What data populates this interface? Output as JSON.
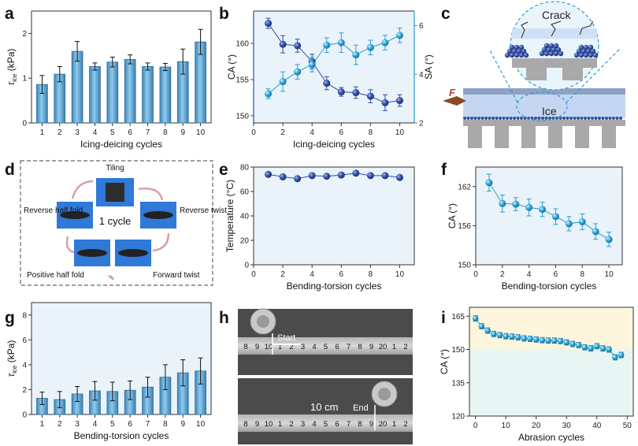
{
  "panel_labels": [
    "a",
    "b",
    "c",
    "d",
    "e",
    "f",
    "g",
    "h",
    "i"
  ],
  "colors": {
    "bar": "#6fb2dc",
    "bar_dark": "#2f6f9a",
    "blue_dark": "#2f4fa0",
    "blue_light": "#27a0d0",
    "panel_bg": "#eaf2fa",
    "panel_bg_i_top": "#fdf6dd",
    "panel_bg_i_bottom": "#e7f5f3"
  },
  "chart_data": [
    {
      "panel": "a",
      "type": "bar",
      "x": [
        1,
        2,
        3,
        4,
        5,
        6,
        7,
        8,
        9,
        10
      ],
      "values": [
        0.86,
        1.09,
        1.6,
        1.26,
        1.36,
        1.42,
        1.26,
        1.25,
        1.37,
        1.81
      ],
      "errors": [
        0.2,
        0.17,
        0.22,
        0.08,
        0.11,
        0.1,
        0.08,
        0.08,
        0.28,
        0.28
      ],
      "xlabel": "Icing-deicing cycles",
      "ylabel": "τ",
      "ylabel_sub": "ice",
      "ylabel_unit": "(kPa)",
      "ylim": [
        0,
        2.5
      ],
      "yticks": [
        0,
        1,
        2
      ],
      "xticks": [
        1,
        2,
        3,
        4,
        5,
        6,
        7,
        8,
        9,
        10
      ]
    },
    {
      "panel": "b",
      "type": "scatter",
      "x": [
        1,
        2,
        3,
        4,
        5,
        6,
        7,
        8,
        9,
        10
      ],
      "series": [
        {
          "name": "CA",
          "axis": "left",
          "values": [
            162.8,
            159.9,
            159.7,
            157.5,
            154.5,
            153.3,
            153.2,
            152.7,
            151.8,
            152.1
          ],
          "errors": [
            0.7,
            1.2,
            0.9,
            1.0,
            0.9,
            0.6,
            0.8,
            0.9,
            1.1,
            0.8
          ]
        },
        {
          "name": "SA",
          "axis": "right",
          "values": [
            3.2,
            3.7,
            4.1,
            4.4,
            5.2,
            5.3,
            4.8,
            5.1,
            5.3,
            5.6
          ],
          "errors": [
            0.2,
            0.4,
            0.3,
            0.3,
            0.3,
            0.4,
            0.4,
            0.3,
            0.3,
            0.3
          ]
        }
      ],
      "xlabel": "Icing-deicing cycles",
      "ylabel_left": "CA (°)",
      "ylabel_right": "SA (°)",
      "xlim": [
        0,
        11
      ],
      "ylim_left": [
        149,
        164.5
      ],
      "ylim_right": [
        2,
        6.6
      ],
      "yticks_left": [
        150,
        155,
        160
      ],
      "yticks_right": [
        2,
        4,
        6
      ],
      "xticks": [
        0,
        2,
        4,
        6,
        8,
        10
      ]
    },
    {
      "panel": "e",
      "type": "line",
      "x": [
        1,
        2,
        3,
        4,
        5,
        6,
        7,
        8,
        9,
        10
      ],
      "values": [
        74,
        72,
        70.5,
        73,
        72.5,
        73.5,
        75,
        73,
        73,
        71.5
      ],
      "xlabel": "Bending-torsion cycles",
      "ylabel": "Temperature (°C)",
      "xlim": [
        0,
        11
      ],
      "ylim": [
        0,
        80
      ],
      "yticks": [
        0,
        20,
        40,
        60,
        80
      ],
      "xticks": [
        0,
        2,
        4,
        6,
        8,
        10
      ]
    },
    {
      "panel": "f",
      "type": "scatter",
      "x": [
        1,
        2,
        3,
        4,
        5,
        6,
        7,
        8,
        9,
        10
      ],
      "values": [
        162.6,
        159.4,
        159.3,
        158.8,
        158.5,
        157.4,
        156.3,
        156.6,
        155.1,
        153.9
      ],
      "errors": [
        1.3,
        1.3,
        1.0,
        1.3,
        1.1,
        1.2,
        1.1,
        1.2,
        1.2,
        1.1
      ],
      "xlabel": "Bending-torsion cycles",
      "ylabel": "CA (°)",
      "xlim": [
        0,
        11
      ],
      "ylim": [
        150,
        165
      ],
      "yticks": [
        150,
        156,
        162
      ],
      "xticks": [
        0,
        2,
        4,
        6,
        8,
        10
      ]
    },
    {
      "panel": "g",
      "type": "bar",
      "x": [
        1,
        2,
        3,
        4,
        5,
        6,
        7,
        8,
        9,
        10
      ],
      "values": [
        1.3,
        1.2,
        1.65,
        1.9,
        1.85,
        1.95,
        2.2,
        3.0,
        3.35,
        3.5
      ],
      "errors": [
        0.5,
        0.65,
        0.6,
        0.75,
        0.75,
        0.75,
        0.8,
        1.0,
        1.05,
        1.05
      ],
      "xlabel": "Bending-torsion cycles",
      "ylabel": "τ",
      "ylabel_sub": "ice",
      "ylabel_unit": "(kPa)",
      "ylim": [
        0,
        9
      ],
      "yticks": [
        0,
        2,
        4,
        6,
        8
      ],
      "xticks": [
        1,
        2,
        3,
        4,
        5,
        6,
        7,
        8,
        9,
        10
      ]
    },
    {
      "panel": "i",
      "type": "scatter",
      "x": [
        0,
        2,
        4,
        6,
        8,
        10,
        12,
        14,
        16,
        18,
        20,
        22,
        24,
        26,
        28,
        30,
        32,
        34,
        36,
        38,
        40,
        42,
        44,
        46,
        48
      ],
      "values": [
        164,
        160.5,
        158.5,
        157,
        156.5,
        156,
        155.8,
        155.5,
        155,
        154.8,
        154.5,
        154.2,
        154,
        154,
        153.8,
        153.2,
        152.5,
        152,
        151,
        150.5,
        151.5,
        150.5,
        150,
        146.5,
        147.5
      ],
      "errors": [
        1.2,
        1.2,
        1.2,
        1.2,
        1.2,
        1.2,
        1.2,
        1.2,
        1.2,
        1.2,
        1.2,
        1.2,
        1.2,
        1.2,
        1.2,
        1.2,
        1.2,
        1.2,
        1.2,
        1.2,
        1.2,
        1.2,
        1.2,
        1.2,
        1.2
      ],
      "xlabel": "Abrasion cycles",
      "ylabel": "CA (°)",
      "xlim": [
        -2,
        52
      ],
      "ylim": [
        120,
        169
      ],
      "yticks": [
        120,
        135,
        150,
        165
      ],
      "xticks": [
        0,
        10,
        20,
        30,
        40,
        50
      ],
      "band_threshold": 150
    }
  ],
  "panel_c": {
    "crack": "Crack",
    "ice": "Ice",
    "force": "F"
  },
  "panel_d": {
    "center": "1 cycle",
    "tiling": "Tiling",
    "reverse_twist": "Reverse twist",
    "forward_twist": "Forward twist",
    "positive_half_fold": "Positive half fold",
    "reverse_half_fold": "Reverse half fold"
  },
  "panel_h": {
    "start": "Start",
    "end": "End",
    "distance": "10 cm",
    "ruler_top": [
      "8",
      "9",
      "10",
      "1",
      "2",
      "3",
      "4",
      "5",
      "6",
      "7",
      "8",
      "9",
      "20",
      "1",
      "2"
    ],
    "ruler_bottom": [
      "8",
      "9",
      "10",
      "1",
      "2",
      "3",
      "4",
      "5",
      "6",
      "7",
      "8",
      "9",
      "20",
      "1",
      "2"
    ]
  }
}
